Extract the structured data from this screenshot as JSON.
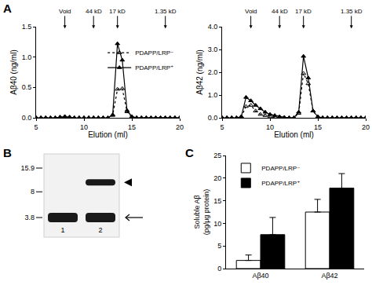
{
  "chart_data": [
    {
      "type": "line",
      "x_label": "Elution (ml)",
      "y_label": "Aβ40 (ng/ml)",
      "x": [
        5,
        5.5,
        6,
        6.5,
        7,
        7.5,
        8,
        8.5,
        9,
        9.5,
        10,
        10.5,
        11,
        11.5,
        12,
        12.5,
        13,
        13.5,
        14,
        14.5,
        15,
        15.5,
        16,
        16.5,
        17,
        17.5,
        18,
        18.5,
        19,
        19.5,
        20
      ],
      "series": [
        {
          "name": "PDAPP/LRP⁻",
          "color": "#000000",
          "marker": "triangle-up-open",
          "line_style": "dot",
          "values": [
            0,
            0,
            0,
            0,
            0,
            0.01,
            0.02,
            0.01,
            0,
            0,
            0,
            0,
            0,
            0,
            0,
            0,
            0.04,
            0.47,
            0.48,
            0.1,
            0.01,
            0,
            0,
            0,
            0,
            0,
            0,
            0,
            0,
            0,
            0
          ]
        },
        {
          "name": "PDAPP/LRP⁺",
          "color": "#000000",
          "marker": "triangle-up",
          "line_style": "solid",
          "values": [
            0,
            0,
            0,
            0,
            0,
            0.01,
            0.02,
            0.01,
            0,
            0,
            0,
            0,
            0,
            0,
            0,
            0,
            0.05,
            1.22,
            0.95,
            0.12,
            0.02,
            0,
            0,
            0,
            0,
            0,
            0,
            0,
            0,
            0,
            0
          ]
        }
      ],
      "xlim": [
        5,
        20
      ],
      "xticks": [
        5,
        10,
        15,
        20
      ],
      "ylim": [
        0,
        1.5
      ],
      "yticks": [
        {
          "value": 0,
          "label": "0.0"
        },
        {
          "value": 0.5,
          "label": "0.5"
        },
        {
          "value": 1,
          "label": "1.0"
        },
        {
          "value": 1.5,
          "label": "1.5"
        }
      ],
      "annotations": [
        {
          "text": "Void",
          "x": 8
        },
        {
          "text": "44 kD",
          "x": 11
        },
        {
          "text": "17 kD",
          "x": 13.5
        },
        {
          "text": "1.35 kD",
          "x": 18.5
        }
      ],
      "legend": "top-right",
      "grid": false
    },
    {
      "type": "line",
      "x_label": "Elution (ml)",
      "y_label": "Aβ42 (ng/ml)",
      "x": [
        5,
        5.5,
        6,
        6.5,
        7,
        7.5,
        8,
        8.5,
        9,
        9.5,
        10,
        10.5,
        11,
        11.5,
        12,
        12.5,
        13,
        13.5,
        14,
        14.5,
        15,
        15.5,
        16,
        16.5,
        17,
        17.5,
        18,
        18.5,
        19,
        19.5,
        20
      ],
      "series": [
        {
          "name": "PDAPP/LRP⁻",
          "color": "#000000",
          "marker": "triangle-up-open",
          "line_style": "dot",
          "values": [
            0,
            0,
            0,
            0,
            0.05,
            0.5,
            0.55,
            0.3,
            0.15,
            0.1,
            0.05,
            0.02,
            0,
            0,
            0,
            0,
            0.2,
            1.95,
            1.5,
            0.3,
            0.03,
            0,
            0,
            0,
            0,
            0,
            0,
            0,
            0,
            0,
            0
          ]
        },
        {
          "name": "PDAPP/LRP⁺",
          "color": "#000000",
          "marker": "triangle-up",
          "line_style": "solid",
          "values": [
            0,
            0,
            0,
            0,
            0.05,
            0.9,
            0.75,
            0.55,
            0.4,
            0.25,
            0.15,
            0.1,
            0.05,
            0.02,
            0,
            0,
            0.25,
            2.7,
            1.75,
            0.3,
            0.05,
            0,
            0,
            0,
            0,
            0,
            0,
            0,
            0,
            0,
            0
          ]
        }
      ],
      "xlim": [
        5,
        20
      ],
      "xticks": [
        5,
        10,
        15,
        20
      ],
      "ylim": [
        0,
        4
      ],
      "yticks": [
        {
          "value": 0,
          "label": "0.0"
        },
        {
          "value": 1,
          "label": "1.0"
        },
        {
          "value": 2,
          "label": "2.0"
        },
        {
          "value": 3,
          "label": "3.0"
        },
        {
          "value": 4,
          "label": "4.0"
        }
      ],
      "annotations": [
        {
          "text": "Void",
          "x": 8
        },
        {
          "text": "44 kD",
          "x": 11
        },
        {
          "text": "17 kD",
          "x": 13.5
        },
        {
          "text": "1.35 kD",
          "x": 18.5
        }
      ],
      "grid": false
    },
    {
      "type": "bar",
      "y_label": "Soluble Aβ\n(pg/μg protein)",
      "categories": [
        "Aβ40",
        "Aβ42"
      ],
      "series": [
        {
          "name": "PDAPP/LRP⁻",
          "color": "#ffffff",
          "values": [
            1.8,
            12.5
          ],
          "errors": [
            1.2,
            2.8
          ]
        },
        {
          "name": "PDAPP/LRP⁺",
          "color": "#000000",
          "values": [
            7.5,
            17.8
          ],
          "errors": [
            3.8,
            3.2
          ]
        }
      ],
      "ylim": [
        0,
        25
      ],
      "yticks": [
        0,
        5,
        10,
        15,
        20,
        25
      ],
      "legend": "top-left",
      "grid": false
    }
  ],
  "panels": [
    "A",
    "B",
    "C"
  ],
  "blot": {
    "ladder": [
      15.9,
      8,
      3.8
    ],
    "lanes": [
      "1",
      "2"
    ],
    "bands": [
      {
        "lane": "1",
        "kd": 3.8
      },
      {
        "lane": "2",
        "kd": 3.8
      },
      {
        "lane": "2",
        "kd": 10.5
      }
    ],
    "arrowhead_kd": 10.5,
    "arrow_kd": 3.8
  }
}
